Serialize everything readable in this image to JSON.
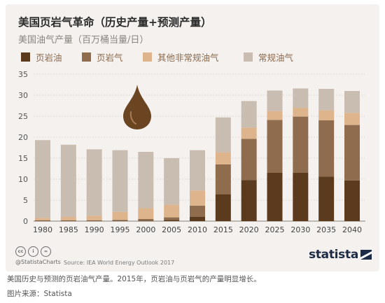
{
  "title": "美国页岩气革命（历史产量+预测产量）",
  "subtitle": "美国油气产量（百万桶当量/日）",
  "legend": [
    {
      "label": "页岩油",
      "color": "#5c3a1e"
    },
    {
      "label": "页岩气",
      "color": "#8e6c4d"
    },
    {
      "label": "其他非常规油气",
      "color": "#ddb48c"
    },
    {
      "label": "常规油气",
      "color": "#c9bdb1"
    }
  ],
  "chart_data": {
    "type": "bar",
    "stacked": true,
    "categories": [
      "1980",
      "1985",
      "1990",
      "1995",
      "2000",
      "2005",
      "2010",
      "2015",
      "2020",
      "2025",
      "2030",
      "2035",
      "2040"
    ],
    "series": [
      {
        "name": "页岩油",
        "color": "#5c3a1e",
        "values": [
          0.1,
          0.1,
          0.1,
          0.1,
          0.1,
          0.3,
          1.0,
          6.4,
          9.8,
          11.5,
          11.5,
          10.6,
          9.7
        ]
      },
      {
        "name": "页岩气",
        "color": "#8e6c4d",
        "values": [
          0.1,
          0.1,
          0.1,
          0.2,
          0.4,
          0.6,
          2.7,
          7.1,
          9.8,
          12.6,
          13.4,
          13.4,
          13.2
        ]
      },
      {
        "name": "其他非常规油气",
        "color": "#ddb48c",
        "values": [
          0.6,
          0.8,
          1.1,
          1.9,
          2.6,
          3.0,
          3.6,
          2.9,
          2.7,
          2.1,
          2.1,
          2.4,
          2.9
        ]
      },
      {
        "name": "常规油气",
        "color": "#c9bdb1",
        "values": [
          18.5,
          17.2,
          15.8,
          14.7,
          13.4,
          11.1,
          9.6,
          8.3,
          6.3,
          4.9,
          4.6,
          5.1,
          5.2
        ]
      }
    ],
    "ylim": [
      0,
      35
    ],
    "yticks": [
      0,
      5,
      10,
      15,
      20,
      25,
      30,
      35
    ],
    "grid": true,
    "legend_position": "top"
  },
  "icons": {
    "drop": "oil-drop-icon"
  },
  "footer": {
    "cc_glyphs": [
      "cc",
      "i",
      "="
    ],
    "credit": "@StatistaCharts",
    "source": "Source: IEA World Energy Outlook 2017",
    "brand": "statista"
  },
  "caption": "美国历史与预测的页岩油气产量。2015年，页岩油与页岩气的产量明显增长。",
  "image_source": "图片来源：Statista"
}
